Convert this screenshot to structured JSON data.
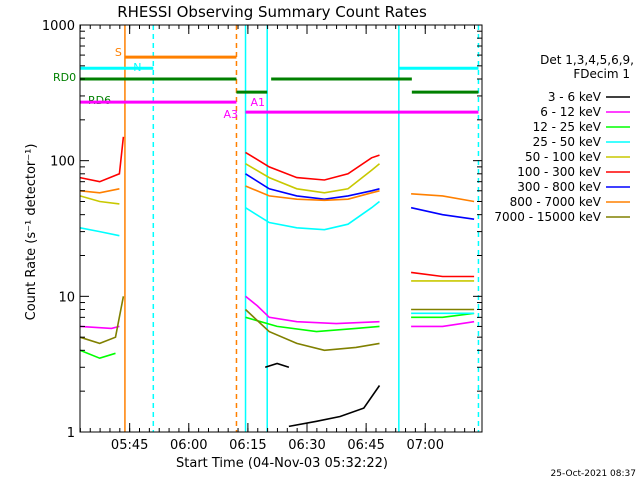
{
  "chart_data": {
    "type": "line",
    "title": "RHESSI Observing Summary Count Rates",
    "xlabel": "Start Time (04-Nov-03 05:32:22)",
    "ylabel": "Count Rate (s⁻¹ detector⁻¹)",
    "yscale": "log",
    "ylim": [
      1,
      1000
    ],
    "xlim_minutes": [
      0,
      102
    ],
    "x_ticks": [
      {
        "t": 12.6,
        "label": "05:45"
      },
      {
        "t": 27.6,
        "label": "06:00"
      },
      {
        "t": 42.6,
        "label": "06:15"
      },
      {
        "t": 57.6,
        "label": "06:30"
      },
      {
        "t": 72.6,
        "label": "06:45"
      },
      {
        "t": 87.6,
        "label": "07:00"
      }
    ],
    "y_ticks": [
      {
        "v": 1,
        "label": "1"
      },
      {
        "v": 10,
        "label": "10"
      },
      {
        "v": 100,
        "label": "100"
      },
      {
        "v": 1000,
        "label": "1000"
      }
    ],
    "legend_header": [
      "Det 1,3,4,5,6,9,",
      "FDecim 1"
    ],
    "series": [
      {
        "name": "3 - 6 keV",
        "color": "#000000",
        "segments": [
          [
            [
              47,
              3
            ],
            [
              50,
              3.2
            ],
            [
              53,
              3.0
            ]
          ],
          [
            [
              53,
              1.1
            ],
            [
              60,
              1.2
            ],
            [
              66,
              1.3
            ],
            [
              72,
              1.5
            ],
            [
              76,
              2.2
            ]
          ]
        ]
      },
      {
        "name": "6 - 12 keV",
        "color": "#ff00ff",
        "segments": [
          [
            [
              0,
              6
            ],
            [
              8,
              5.8
            ],
            [
              10,
              6
            ]
          ],
          [
            [
              42,
              10
            ],
            [
              45,
              8.5
            ],
            [
              48,
              7
            ],
            [
              55,
              6.5
            ],
            [
              65,
              6.3
            ],
            [
              76,
              6.5
            ]
          ],
          [
            [
              84,
              6
            ],
            [
              92,
              6
            ],
            [
              100,
              6.5
            ]
          ]
        ]
      },
      {
        "name": "12 - 25 keV",
        "color": "#00ff00",
        "segments": [
          [
            [
              0,
              4
            ],
            [
              5,
              3.5
            ],
            [
              9,
              3.8
            ]
          ],
          [
            [
              42,
              7
            ],
            [
              50,
              6
            ],
            [
              60,
              5.5
            ],
            [
              70,
              5.8
            ],
            [
              76,
              6
            ]
          ],
          [
            [
              84,
              7
            ],
            [
              92,
              7
            ],
            [
              100,
              7.5
            ]
          ]
        ]
      },
      {
        "name": "25 - 50 keV",
        "color": "#00ffff",
        "segments": [
          [
            [
              0,
              32
            ],
            [
              5,
              30
            ],
            [
              10,
              28
            ]
          ],
          [
            [
              42,
              45
            ],
            [
              48,
              35
            ],
            [
              55,
              32
            ],
            [
              62,
              31
            ],
            [
              68,
              34
            ],
            [
              74,
              45
            ],
            [
              76,
              50
            ]
          ],
          [
            [
              84,
              7.5
            ],
            [
              92,
              7.5
            ],
            [
              100,
              7.5
            ]
          ]
        ]
      },
      {
        "name": "50 - 100 keV",
        "color": "#c8c800",
        "segments": [
          [
            [
              0,
              55
            ],
            [
              5,
              50
            ],
            [
              10,
              48
            ]
          ],
          [
            [
              42,
              95
            ],
            [
              48,
              75
            ],
            [
              55,
              62
            ],
            [
              62,
              58
            ],
            [
              68,
              62
            ],
            [
              74,
              85
            ],
            [
              76,
              95
            ]
          ],
          [
            [
              84,
              13
            ],
            [
              92,
              13
            ],
            [
              100,
              13
            ]
          ]
        ]
      },
      {
        "name": "100 - 300 keV",
        "color": "#ff0000",
        "segments": [
          [
            [
              0,
              75
            ],
            [
              5,
              70
            ],
            [
              10,
              80
            ],
            [
              11,
              150
            ]
          ],
          [
            [
              42,
              115
            ],
            [
              48,
              90
            ],
            [
              55,
              75
            ],
            [
              62,
              72
            ],
            [
              68,
              80
            ],
            [
              74,
              105
            ],
            [
              76,
              110
            ]
          ],
          [
            [
              84,
              15
            ],
            [
              92,
              14
            ],
            [
              100,
              14
            ]
          ]
        ]
      },
      {
        "name": "300 - 800 keV",
        "color": "#0000ff",
        "segments": [
          [
            [
              42,
              80
            ],
            [
              48,
              62
            ],
            [
              55,
              55
            ],
            [
              62,
              52
            ],
            [
              68,
              55
            ],
            [
              74,
              60
            ],
            [
              76,
              62
            ]
          ],
          [
            [
              84,
              45
            ],
            [
              92,
              40
            ],
            [
              100,
              37
            ]
          ]
        ]
      },
      {
        "name": "800 - 7000 keV",
        "color": "#ff8000",
        "segments": [
          [
            [
              0,
              60
            ],
            [
              5,
              58
            ],
            [
              10,
              62
            ]
          ],
          [
            [
              42,
              65
            ],
            [
              48,
              55
            ],
            [
              55,
              52
            ],
            [
              62,
              51
            ],
            [
              68,
              52
            ],
            [
              74,
              58
            ],
            [
              76,
              60
            ]
          ],
          [
            [
              84,
              57
            ],
            [
              92,
              55
            ],
            [
              100,
              50
            ]
          ]
        ]
      },
      {
        "name": "7000 - 15000 keV",
        "color": "#808000",
        "segments": [
          [
            [
              0,
              5
            ],
            [
              5,
              4.5
            ],
            [
              9,
              5
            ],
            [
              11,
              10
            ]
          ],
          [
            [
              42,
              8
            ],
            [
              48,
              5.5
            ],
            [
              55,
              4.5
            ],
            [
              62,
              4
            ],
            [
              70,
              4.2
            ],
            [
              76,
              4.5
            ]
          ],
          [
            [
              84,
              8
            ],
            [
              92,
              8
            ],
            [
              100,
              8
            ]
          ]
        ]
      }
    ],
    "vertical_lines": [
      {
        "t": 11.4,
        "color": "#ff8000",
        "style": "solid"
      },
      {
        "t": 18.6,
        "color": "#00ffff",
        "style": "dashed"
      },
      {
        "t": 39.7,
        "color": "#ff8000",
        "style": "dashed"
      },
      {
        "t": 42.0,
        "color": "#00ffff",
        "style": "solid"
      },
      {
        "t": 47.5,
        "color": "#00ffff",
        "style": "solid"
      },
      {
        "t": 80.9,
        "color": "#00ffff",
        "style": "solid"
      },
      {
        "t": 101.1,
        "color": "#00ffff",
        "style": "dashed"
      }
    ],
    "flag_bars": [
      {
        "name": "S",
        "color": "#ff8000",
        "label_color": "#ff8000",
        "y": 580,
        "segments": [
          [
            11.4,
            39.7
          ]
        ]
      },
      {
        "name": "N",
        "color": "#00ffff",
        "label_color": "#00ffff",
        "y": 480,
        "segments": [
          [
            0,
            18.6
          ],
          [
            80.9,
            101.1
          ]
        ]
      },
      {
        "name": "RD0",
        "color": "#008000",
        "label_color": "#008000",
        "y": 400,
        "segments": [
          [
            0,
            39.7
          ],
          [
            48.5,
            84.2
          ]
        ]
      },
      {
        "name": "RD6",
        "color": "#008000",
        "label_color": "#008000",
        "y": 320,
        "segments": [
          [
            39.7,
            47.5
          ],
          [
            84.2,
            101.1
          ]
        ]
      },
      {
        "name": "A1",
        "color": "#ff00ff",
        "label_color": "#ff00ff",
        "y": 270,
        "segments": [
          [
            0,
            39.7
          ]
        ]
      },
      {
        "name": "A3",
        "color": "#ff00ff",
        "label_color": "#ff00ff",
        "y": 228,
        "segments": [
          [
            42.0,
            101.1
          ]
        ]
      }
    ]
  },
  "footer": {
    "timestamp": "25-Oct-2021 08:37"
  }
}
